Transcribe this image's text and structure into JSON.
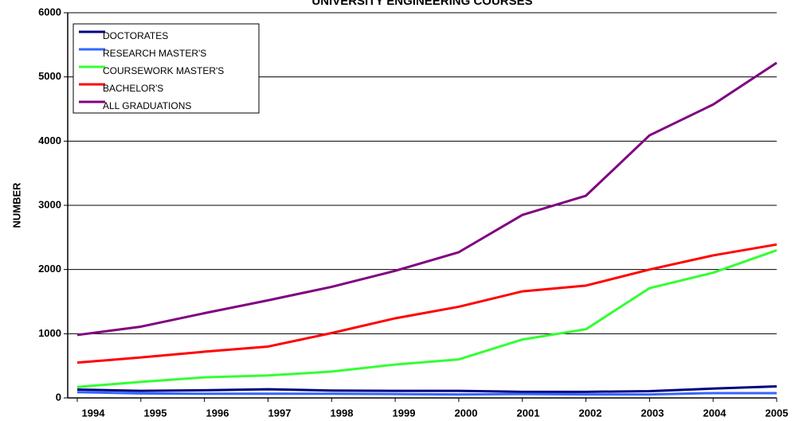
{
  "chart_data": {
    "type": "line",
    "title": "UNIVERSITY ENGINEERING COURSES",
    "y_label": "NUMBER",
    "categories": [
      "1994",
      "1995",
      "1996",
      "1997",
      "1998",
      "1999",
      "2000",
      "2001",
      "2002",
      "2003",
      "2004",
      "2005"
    ],
    "series": [
      {
        "name": "DOCTORATES",
        "color": "#000080",
        "values": [
          130,
          110,
          120,
          135,
          115,
          110,
          110,
          95,
          95,
          105,
          145,
          180
        ]
      },
      {
        "name": "RESEARCH MASTER'S",
        "color": "#3366ff",
        "values": [
          90,
          70,
          65,
          65,
          65,
          60,
          55,
          60,
          55,
          55,
          75,
          75
        ]
      },
      {
        "name": "COURSEWORK MASTER'S",
        "color": "#33ff33",
        "values": [
          170,
          250,
          320,
          350,
          410,
          520,
          600,
          910,
          1070,
          1710,
          1950,
          2300
        ]
      },
      {
        "name": "BACHELOR'S",
        "color": "#ff0000",
        "values": [
          550,
          630,
          720,
          800,
          1010,
          1240,
          1420,
          1660,
          1750,
          2000,
          2220,
          2390
        ]
      },
      {
        "name": "ALL GRADUATIONS",
        "color": "#800080",
        "values": [
          980,
          1110,
          1320,
          1520,
          1730,
          1980,
          2270,
          2850,
          3150,
          4090,
          4570,
          5220
        ]
      }
    ],
    "ylim": [
      0,
      6000
    ],
    "yticks": [
      0,
      1000,
      2000,
      3000,
      4000,
      5000,
      6000
    ],
    "grid": true,
    "legend": "upper left"
  }
}
